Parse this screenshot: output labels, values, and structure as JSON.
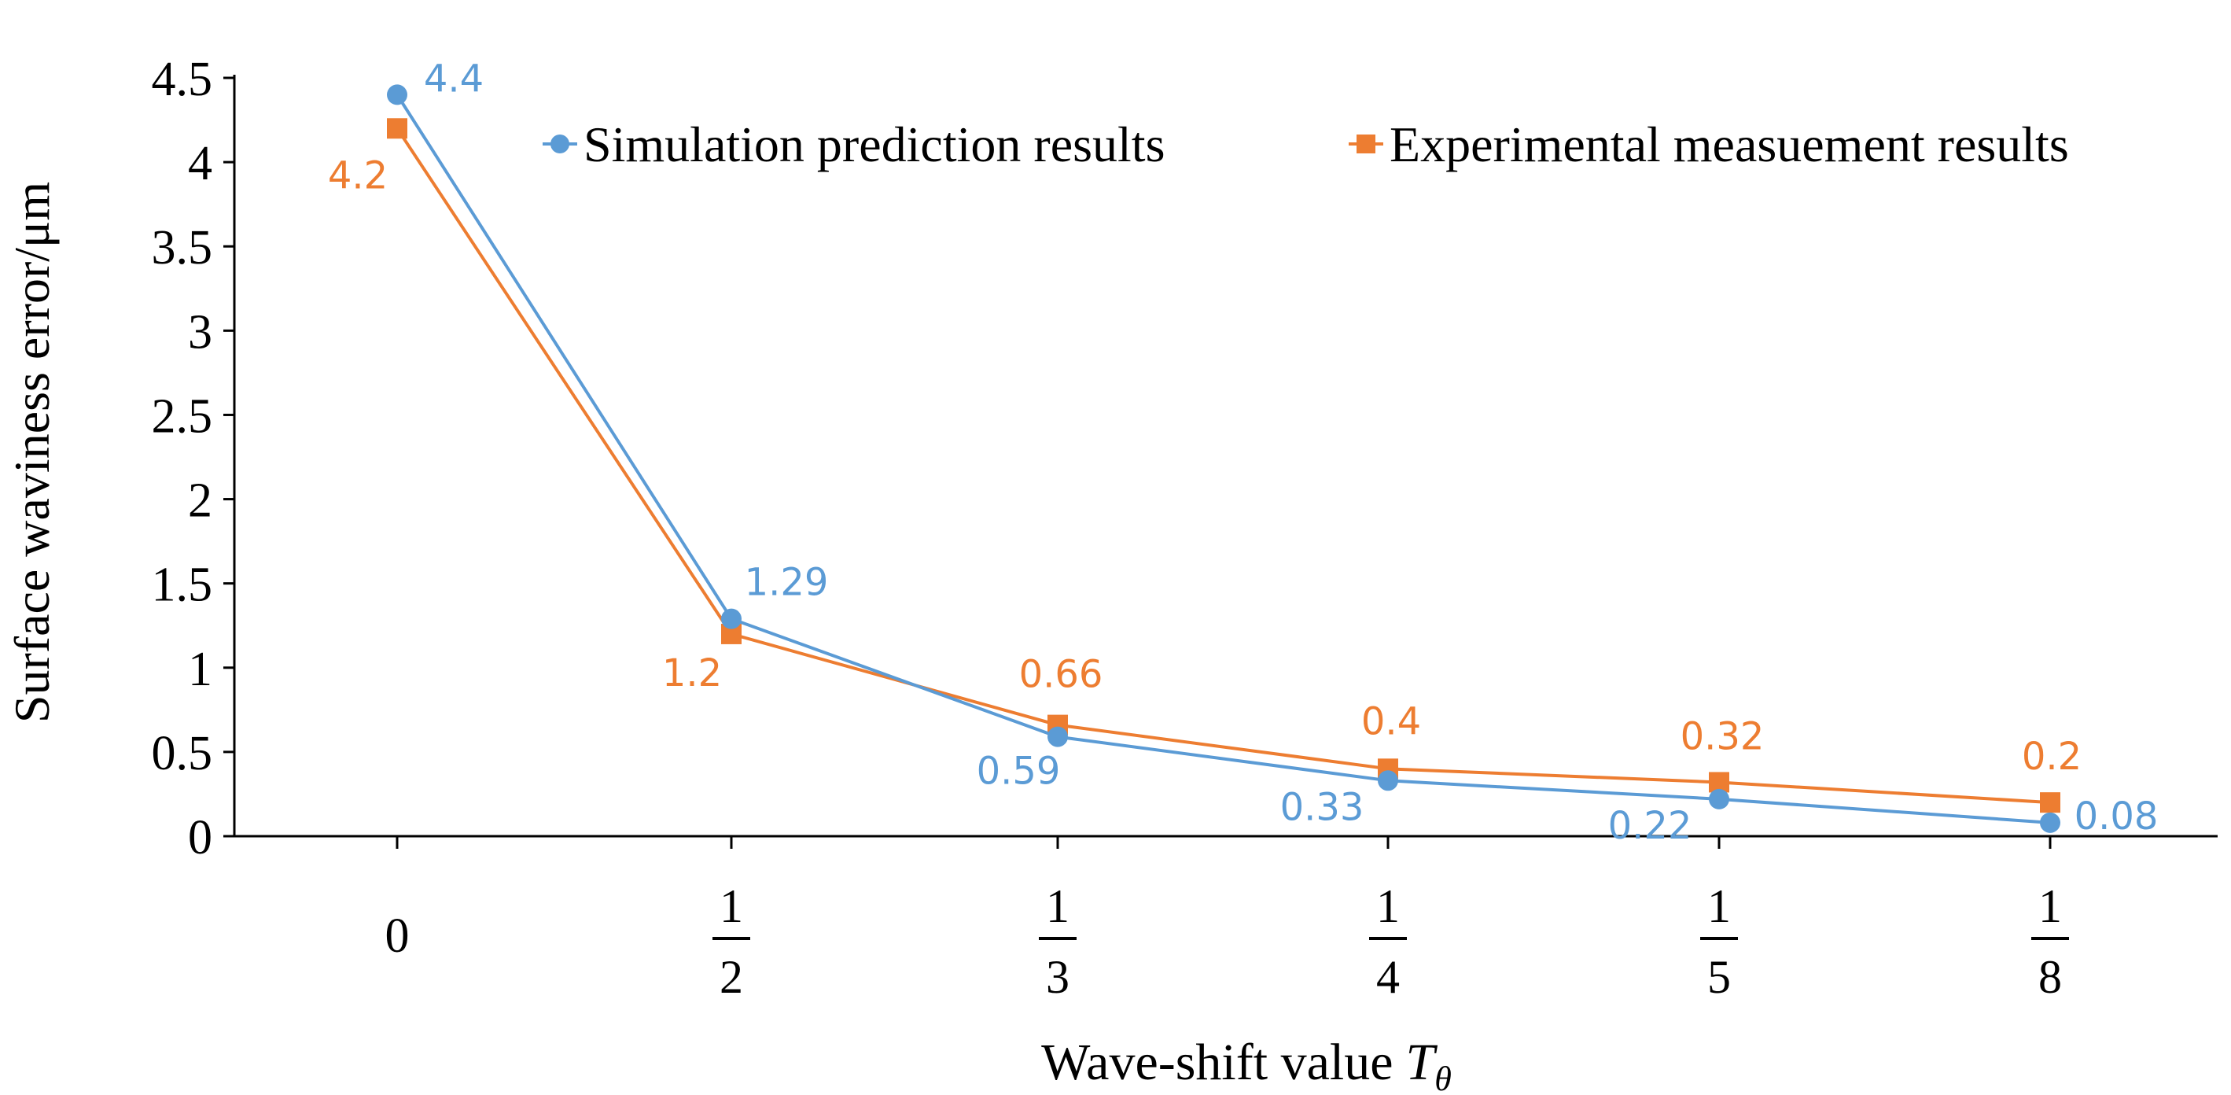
{
  "chart_data": {
    "type": "line",
    "title": "",
    "xlabel": "Wave-shift value",
    "xlabel_symbol": "T",
    "xlabel_subscript": "θ",
    "ylabel": "Surface waviness error/μm",
    "ylim": [
      0,
      4.5
    ],
    "yticks": [
      "0",
      "0.5",
      "1",
      "1.5",
      "2",
      "2.5",
      "3",
      "3.5",
      "4",
      "4.5"
    ],
    "categories": [
      {
        "whole": "0"
      },
      {
        "numerator": "1",
        "denominator": "2"
      },
      {
        "numerator": "1",
        "denominator": "3"
      },
      {
        "numerator": "1",
        "denominator": "4"
      },
      {
        "numerator": "1",
        "denominator": "5"
      },
      {
        "numerator": "1",
        "denominator": "8"
      }
    ],
    "legend_position": "top-right",
    "series": [
      {
        "name": "Simulation prediction results",
        "color": "#5B9BD5",
        "marker": "circle",
        "values": [
          4.4,
          1.29,
          0.59,
          0.33,
          0.22,
          0.08
        ],
        "labels": [
          "4.4",
          "1.29",
          "0.59",
          "0.33",
          "0.22",
          "0.08"
        ]
      },
      {
        "name": "Experimental measuement results",
        "color": "#ED7D31",
        "marker": "square",
        "values": [
          4.2,
          1.2,
          0.66,
          0.4,
          0.32,
          0.2
        ],
        "labels": [
          "4.2",
          "1.2",
          "0.66",
          "0.4",
          "0.32",
          "0.2"
        ]
      }
    ]
  }
}
